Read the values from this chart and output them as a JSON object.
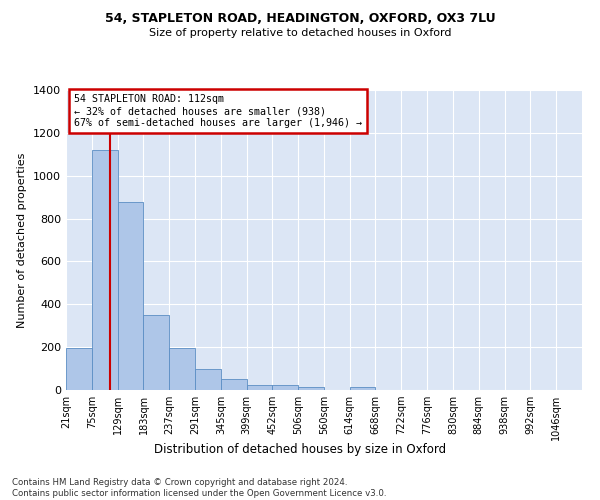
{
  "title1": "54, STAPLETON ROAD, HEADINGTON, OXFORD, OX3 7LU",
  "title2": "Size of property relative to detached houses in Oxford",
  "xlabel": "Distribution of detached houses by size in Oxford",
  "ylabel": "Number of detached properties",
  "footnote": "Contains HM Land Registry data © Crown copyright and database right 2024.\nContains public sector information licensed under the Open Government Licence v3.0.",
  "annotation_line1": "54 STAPLETON ROAD: 112sqm",
  "annotation_line2": "← 32% of detached houses are smaller (938)",
  "annotation_line3": "67% of semi-detached houses are larger (1,946) →",
  "property_size_sqm": 112,
  "bar_edges": [
    21,
    75,
    129,
    183,
    237,
    291,
    345,
    399,
    452,
    506,
    560,
    614,
    668,
    722,
    776,
    830,
    884,
    938,
    992,
    1046,
    1100
  ],
  "bar_heights": [
    197,
    1120,
    878,
    350,
    194,
    97,
    52,
    24,
    22,
    15,
    0,
    13,
    0,
    0,
    0,
    0,
    0,
    0,
    0,
    0
  ],
  "bar_color": "#aec6e8",
  "bar_edge_color": "#5b8ec4",
  "property_line_color": "#cc0000",
  "annotation_box_color": "#cc0000",
  "fig_background_color": "#ffffff",
  "plot_background_color": "#dce6f5",
  "grid_color": "#ffffff",
  "ylim": [
    0,
    1400
  ],
  "yticks": [
    0,
    200,
    400,
    600,
    800,
    1000,
    1200,
    1400
  ]
}
